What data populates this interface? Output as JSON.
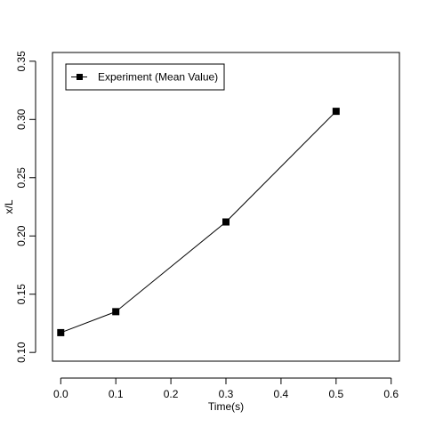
{
  "chart_data": {
    "type": "line",
    "xlabel": "Time(s)",
    "ylabel": "x/L",
    "xlim": [
      -0.015,
      0.615
    ],
    "ylim": [
      0.0925,
      0.3575
    ],
    "xticks": [
      0.0,
      0.1,
      0.2,
      0.3,
      0.4,
      0.5,
      0.6
    ],
    "xtick_labels": [
      "0.0",
      "0.1",
      "0.2",
      "0.3",
      "0.4",
      "0.5",
      "0.6"
    ],
    "yticks": [
      0.1,
      0.15,
      0.2,
      0.25,
      0.3,
      0.35
    ],
    "ytick_labels": [
      "0.10",
      "0.15",
      "0.20",
      "0.25",
      "0.30",
      "0.35"
    ],
    "grid": false,
    "legend_position": "top-left",
    "series": [
      {
        "name": "Experiment (Mean Value)",
        "marker": "square",
        "color": "#000000",
        "x": [
          0.0,
          0.1,
          0.3,
          0.5
        ],
        "y": [
          0.117,
          0.135,
          0.212,
          0.307
        ]
      }
    ]
  }
}
